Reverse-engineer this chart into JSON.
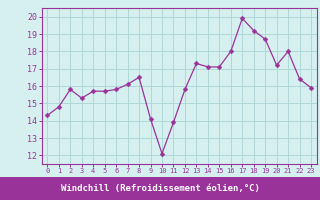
{
  "x": [
    0,
    1,
    2,
    3,
    4,
    5,
    6,
    7,
    8,
    9,
    10,
    11,
    12,
    13,
    14,
    15,
    16,
    17,
    18,
    19,
    20,
    21,
    22,
    23
  ],
  "y": [
    14.3,
    14.8,
    15.8,
    15.3,
    15.7,
    15.7,
    15.8,
    16.1,
    16.5,
    14.1,
    12.1,
    13.9,
    15.8,
    17.3,
    17.1,
    17.1,
    18.0,
    19.9,
    19.2,
    18.7,
    17.2,
    18.0,
    16.4,
    15.9
  ],
  "line_color": "#993399",
  "marker": "D",
  "markersize": 2.5,
  "linewidth": 0.9,
  "bg_color": "#d6f0f0",
  "grid_color": "#b0d8d8",
  "xlabel": "Windchill (Refroidissement éolien,°C)",
  "xlabel_color": "#ffffff",
  "xlabel_bg": "#993399",
  "ylim": [
    11.5,
    20.5
  ],
  "xlim": [
    -0.5,
    23.5
  ],
  "yticks": [
    12,
    13,
    14,
    15,
    16,
    17,
    18,
    19,
    20
  ],
  "xticks": [
    0,
    1,
    2,
    3,
    4,
    5,
    6,
    7,
    8,
    9,
    10,
    11,
    12,
    13,
    14,
    15,
    16,
    17,
    18,
    19,
    20,
    21,
    22,
    23
  ],
  "tick_color": "#993399",
  "axis_linecolor": "#993399",
  "spine_color": "#993399"
}
